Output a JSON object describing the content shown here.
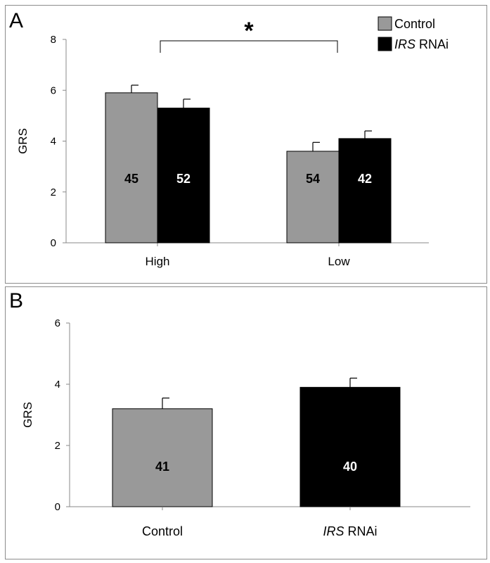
{
  "panels": {
    "a": {
      "letter": "A"
    },
    "b": {
      "letter": "B"
    }
  },
  "legend": {
    "control": "Control",
    "irs_italic": "IRS",
    "irs_rest": " RNAi"
  },
  "significance": {
    "marker": "*"
  },
  "colors": {
    "control": "#999999",
    "irs": "#000000",
    "axis": "#888888"
  },
  "chart_data": [
    {
      "type": "bar",
      "panel": "A",
      "ylabel": "GRS",
      "xlabel": "",
      "ylim": [
        0,
        8
      ],
      "yticks": [
        0,
        2,
        4,
        6,
        8
      ],
      "categories": [
        "High",
        "Low"
      ],
      "series": [
        {
          "name": "Control",
          "values": [
            5.9,
            3.6
          ],
          "errors": [
            0.3,
            0.35
          ],
          "n_labels": [
            "45",
            "54"
          ]
        },
        {
          "name": "IRS RNAi",
          "values": [
            5.3,
            4.1
          ],
          "errors": [
            0.35,
            0.3
          ],
          "n_labels": [
            "52",
            "42"
          ]
        }
      ],
      "annotation": {
        "text": "*",
        "between": [
          "High",
          "Low"
        ]
      },
      "legend_position": "top-right"
    },
    {
      "type": "bar",
      "panel": "B",
      "ylabel": "GRS",
      "xlabel": "",
      "ylim": [
        0,
        6
      ],
      "yticks": [
        0,
        2,
        4,
        6
      ],
      "categories": [
        "Control",
        "IRS RNAi"
      ],
      "values": [
        3.2,
        3.9
      ],
      "errors": [
        0.35,
        0.3
      ],
      "n_labels": [
        "41",
        "40"
      ]
    }
  ]
}
